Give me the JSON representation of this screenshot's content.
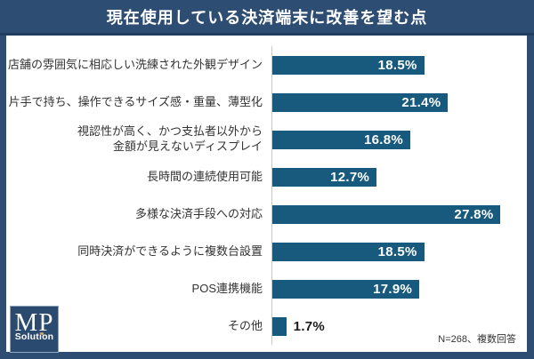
{
  "header": {
    "title": "現在使用している決済端末に改善を望む点"
  },
  "chart_data": {
    "type": "bar",
    "orientation": "horizontal",
    "title": "現在使用している決済端末に改善を望む点",
    "categories": [
      "店舗の雰囲気に相応しい洗練された外観デザイン",
      "片手で持ち、操作できるサイズ感・重量、薄型化",
      "視認性が高く、かつ支払者以外から\n金額が見えないディスプレイ",
      "長時間の連続使用可能",
      "多様な決済手段への対応",
      "同時決済ができるように複数台設置",
      "POS連携機能",
      "その他"
    ],
    "values": [
      18.5,
      21.4,
      16.8,
      12.7,
      27.8,
      18.5,
      17.9,
      1.7
    ],
    "value_labels": [
      "18.5%",
      "21.4%",
      "16.8%",
      "12.7%",
      "27.8%",
      "18.5%",
      "17.9%",
      "1.7%"
    ],
    "unit": "%",
    "xlim": [
      0,
      31
    ],
    "inside_label_threshold": 4,
    "grid": false,
    "legend": false,
    "footnote": "N=268、複数回答"
  },
  "logo": {
    "line1": "MP",
    "line2": "Solution"
  },
  "colors": {
    "frame": "#2e4d72",
    "header_rule": "#223c5d",
    "bar": "#175a7d",
    "axis_line": "#c8c8c8",
    "label_text": "#333333",
    "value_inside": "#ffffff",
    "value_outside": "#1a1a1a",
    "logo_bg": "#2b4a70",
    "logo_dot": "#f2a33c"
  }
}
